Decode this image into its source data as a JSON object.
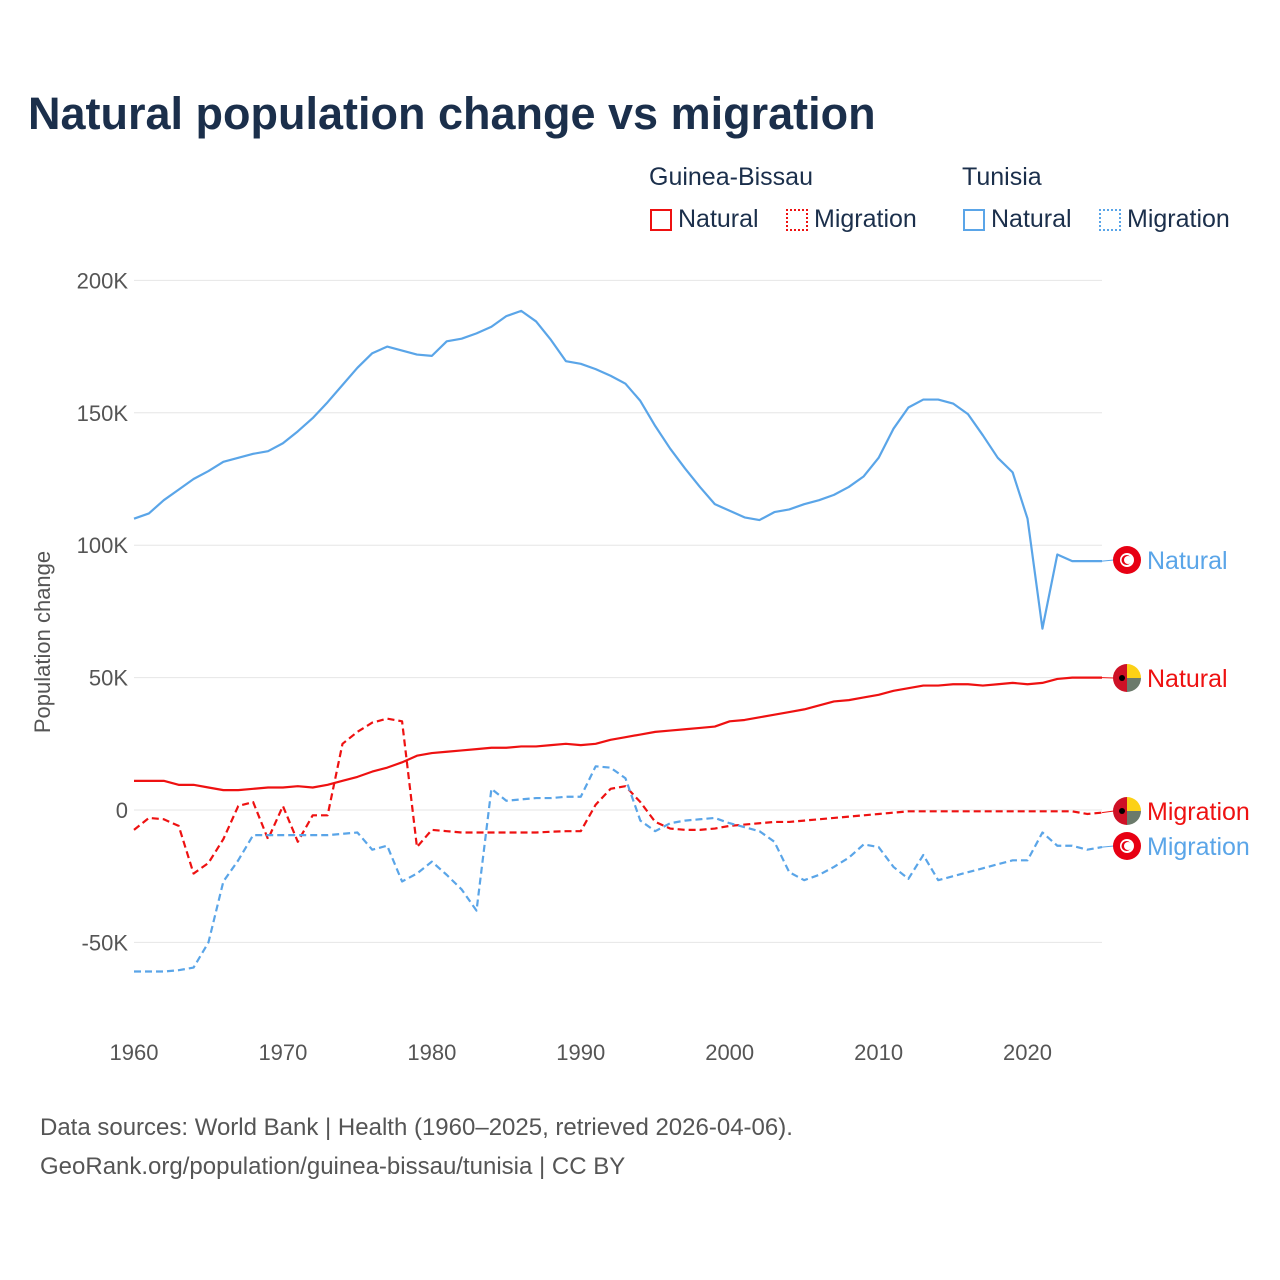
{
  "title": "Natural population change vs migration",
  "legend": {
    "groups": [
      {
        "name": "Guinea-Bissau",
        "items": [
          {
            "label": "Natural",
            "style": "solid"
          },
          {
            "label": "Migration",
            "style": "dotted"
          }
        ],
        "color": "#ee1111"
      },
      {
        "name": "Tunisia",
        "items": [
          {
            "label": "Natural",
            "style": "solid"
          },
          {
            "label": "Migration",
            "style": "dotted"
          }
        ],
        "color": "#5aa5e8"
      }
    ]
  },
  "source": {
    "line1": "Data sources: World Bank | Health (1960–2025, retrieved 2026-04-06).",
    "line2": "GeoRank.org/population/guinea-bissau/tunisia | CC BY"
  },
  "chart_data": {
    "type": "line",
    "title": "Natural population change vs migration",
    "xlabel": "",
    "ylabel": "Population change",
    "xlim": [
      1960,
      2025
    ],
    "ylim": [
      -70000,
      210000
    ],
    "x_ticks": [
      1960,
      1970,
      1980,
      1990,
      2000,
      2010,
      2020
    ],
    "y_ticks": [
      {
        "value": 200000,
        "label": "200K"
      },
      {
        "value": 150000,
        "label": "150K"
      },
      {
        "value": 100000,
        "label": "100K"
      },
      {
        "value": 50000,
        "label": "50K"
      },
      {
        "value": 0,
        "label": "0"
      },
      {
        "value": -50000,
        "label": "-50K"
      }
    ],
    "grid": true,
    "legend_position": "top-right",
    "x_start": 1960,
    "units": "thousands",
    "series": [
      {
        "name": "Tunisia Natural",
        "end_label": "Natural",
        "country": "Tunisia",
        "color": "#5aa5e8",
        "dash": false,
        "values": [
          110,
          112,
          117,
          121,
          125,
          128,
          131.5,
          133,
          134.5,
          135.5,
          138.5,
          143,
          148,
          154,
          160.5,
          167,
          172.5,
          175,
          173.5,
          172,
          171.5,
          177,
          178,
          180,
          182.5,
          186.5,
          188.5,
          184.5,
          177.5,
          169.5,
          168.5,
          166.5,
          164,
          161,
          154.5,
          145,
          136.5,
          129,
          122,
          115.5,
          113,
          110.5,
          109.5,
          112.5,
          113.5,
          115.5,
          117,
          119,
          122,
          126,
          133,
          144,
          152,
          155,
          155,
          153.5,
          149.5,
          141.5,
          133,
          127.5,
          110,
          68.5,
          96.5,
          94,
          94,
          94
        ]
      },
      {
        "name": "Guinea-Bissau Natural",
        "end_label": "Natural",
        "country": "Guinea-Bissau",
        "color": "#ee1111",
        "dash": false,
        "values": [
          11,
          11,
          11,
          9.5,
          9.5,
          8.5,
          7.5,
          7.5,
          8,
          8.5,
          8.5,
          9,
          8.5,
          9.5,
          11,
          12.5,
          14.5,
          16,
          18,
          20.5,
          21.5,
          22,
          22.5,
          23,
          23.5,
          23.5,
          24,
          24,
          24.5,
          25,
          24.5,
          25,
          26.5,
          27.5,
          28.5,
          29.5,
          30,
          30.5,
          31,
          31.5,
          33.5,
          34,
          35,
          36,
          37,
          38,
          39.5,
          41,
          41.5,
          42.5,
          43.5,
          45,
          46,
          47,
          47,
          47.5,
          47.5,
          47,
          47.5,
          48,
          47.5,
          48,
          49.5,
          50,
          50,
          50
        ]
      },
      {
        "name": "Guinea-Bissau Migration",
        "end_label": "Migration",
        "country": "Guinea-Bissau",
        "color": "#ee1111",
        "dash": true,
        "values": [
          -7.5,
          -3,
          -3.5,
          -6,
          -24,
          -20,
          -11,
          1.5,
          3,
          -11,
          1.5,
          -12,
          -2,
          -2,
          25,
          29.5,
          33,
          34.5,
          33.5,
          -14,
          -7.5,
          -8,
          -8.5,
          -8.5,
          -8.5,
          -8.5,
          -8.5,
          -8.5,
          -8.2,
          -8,
          -8,
          2,
          8,
          9,
          3,
          -4.5,
          -7,
          -7.5,
          -7.5,
          -7,
          -6,
          -5.5,
          -5,
          -4.5,
          -4.5,
          -4,
          -3.5,
          -3,
          -2.5,
          -2,
          -1.5,
          -1,
          -0.5,
          -0.5,
          -0.5,
          -0.5,
          -0.5,
          -0.5,
          -0.5,
          -0.5,
          -0.5,
          -0.5,
          -0.5,
          -0.5,
          -1.5,
          -1
        ]
      },
      {
        "name": "Tunisia Migration",
        "end_label": "Migration",
        "country": "Tunisia",
        "color": "#5aa5e8",
        "dash": true,
        "values": [
          -61,
          -61,
          -61,
          -60.5,
          -59.5,
          -50,
          -27,
          -19,
          -9.5,
          -9.5,
          -9.5,
          -9.5,
          -9.5,
          -9.5,
          -9,
          -8.5,
          -15,
          -13.5,
          -27,
          -24,
          -19.5,
          -24.5,
          -30,
          -38,
          8,
          3.5,
          4,
          4.5,
          4.5,
          5,
          5,
          16.5,
          16,
          12,
          -4,
          -8,
          -5,
          -4,
          -3.5,
          -3,
          -5,
          -6.5,
          -8,
          -12,
          -23.5,
          -26.5,
          -24.5,
          -21.5,
          -18,
          -13,
          -14,
          -21.5,
          -26,
          -17,
          -26.5,
          -25,
          -23.5,
          -22,
          -20.5,
          -19,
          -19,
          -8.5,
          -13.5,
          -13.5,
          -15,
          -14
        ]
      }
    ]
  }
}
